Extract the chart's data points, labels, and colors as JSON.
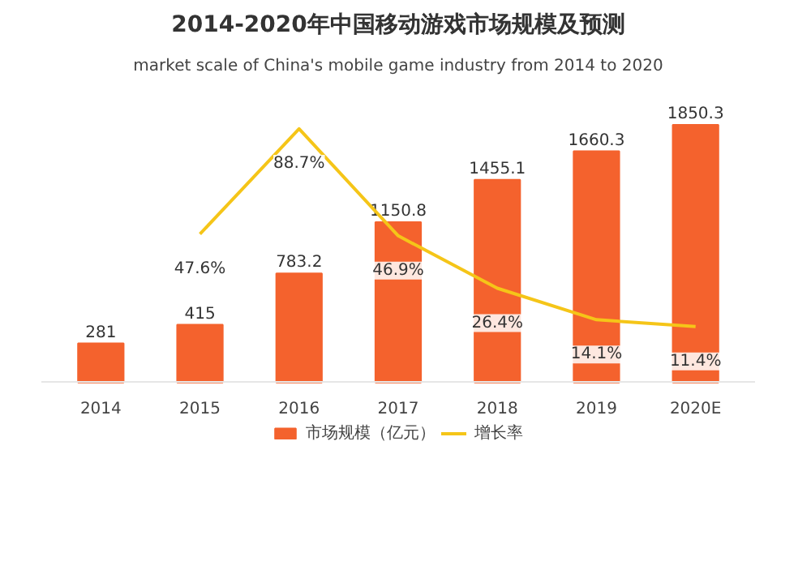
{
  "chart_data": {
    "type": "bar",
    "title": "2014-2020年中国移动游戏市场规模及预测",
    "subtitle": "market scale of China's mobile game industry from 2014 to 2020",
    "categories": [
      "2014",
      "2015",
      "2016",
      "2017",
      "2018",
      "2019",
      "2020E"
    ],
    "series": [
      {
        "name": "市场规模（亿元）",
        "color": "#f4622d",
        "values": [
          281,
          415,
          783.2,
          1150.8,
          1455.1,
          1660.3,
          1850.3
        ]
      },
      {
        "name": "增长率",
        "type": "line",
        "axis": "y2",
        "color": "#f5c518",
        "values": [
          null,
          47.6,
          88.7,
          46.9,
          26.4,
          14.1,
          11.4
        ],
        "value_labels": [
          null,
          "47.6%",
          "88.7%",
          "46.9%",
          "26.4%",
          "14.1%",
          "11.4%"
        ]
      }
    ],
    "data_labels": true,
    "legend": "bottom",
    "grid": false,
    "marker": "none",
    "line_style": "solid"
  }
}
